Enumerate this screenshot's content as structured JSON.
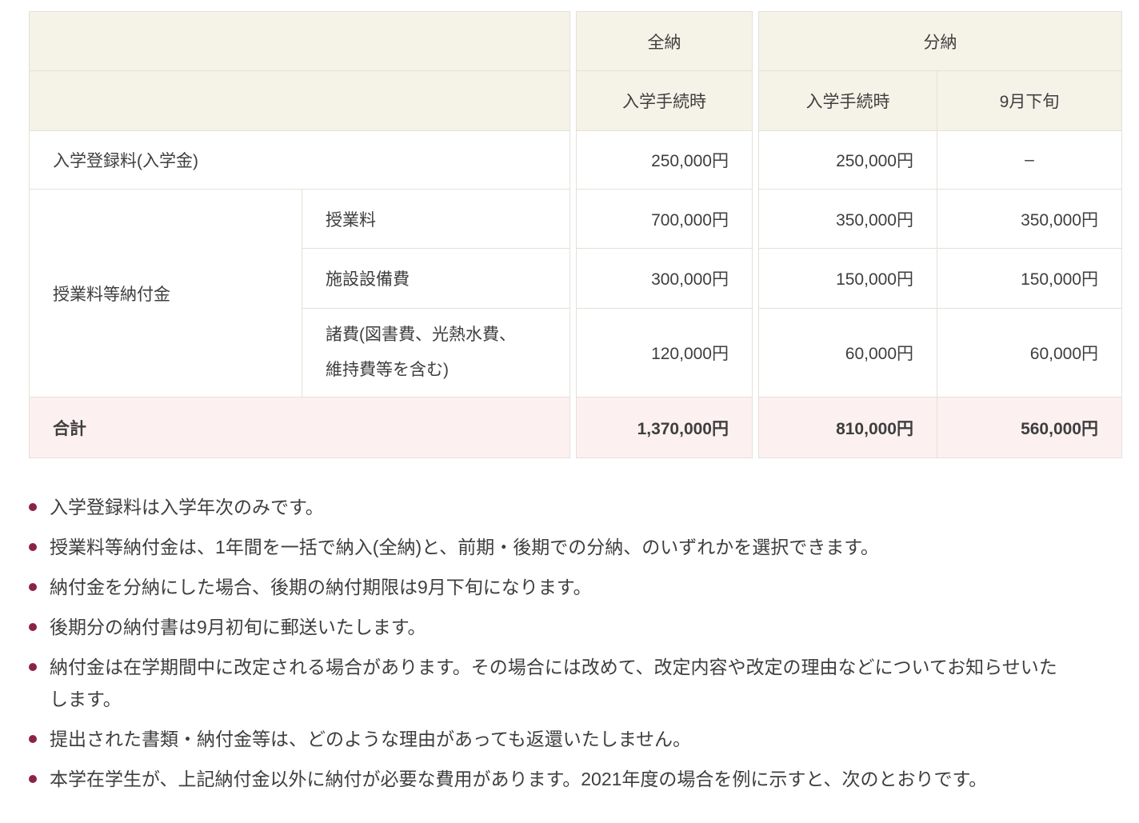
{
  "table": {
    "groups": {
      "zenno": "全納",
      "bunno": "分納"
    },
    "subheaders": {
      "zenno": "入学手続時",
      "bunno1": "入学手続時",
      "bunno2": "9月下旬"
    },
    "row_group_label": "授業料等納付金",
    "rows": [
      {
        "label": "入学登録料(入学金)",
        "zenno": "250,000円",
        "bunno1": "250,000円",
        "bunno2": "–"
      },
      {
        "item": "授業料",
        "zenno": "700,000円",
        "bunno1": "350,000円",
        "bunno2": "350,000円"
      },
      {
        "item": "施設設備費",
        "zenno": "300,000円",
        "bunno1": "150,000円",
        "bunno2": "150,000円"
      },
      {
        "item": "諸費(図書費、光熱水費、維持費等を含む)",
        "zenno": "120,000円",
        "bunno1": "60,000円",
        "bunno2": "60,000円"
      }
    ],
    "total": {
      "label": "合計",
      "zenno": "1,370,000円",
      "bunno1": "810,000円",
      "bunno2": "560,000円"
    }
  },
  "notes": [
    "入学登録料は入学年次のみです。",
    "授業料等納付金は、1年間を一括で納入(全納)と、前期・後期での分納、のいずれかを選択できます。",
    "納付金を分納にした場合、後期の納付期限は9月下旬になります。",
    "後期分の納付書は9月初旬に郵送いたします。",
    "納付金は在学期間中に改定される場合があります。その場合には改めて、改定内容や改定の理由などについてお知らせいたします。",
    "提出された書類・納付金等は、どのような理由があっても返還いたしません。",
    "本学在学生が、上記納付金以外に納付が必要な費用があります。2021年度の場合を例に示すと、次のとおりです。"
  ],
  "colors": {
    "header_bg": "#f5f3e8",
    "total_row_bg": "#fdf0f1",
    "border": "#e3e1d7",
    "bullet": "#8b2341",
    "text": "#3e3e3e"
  }
}
